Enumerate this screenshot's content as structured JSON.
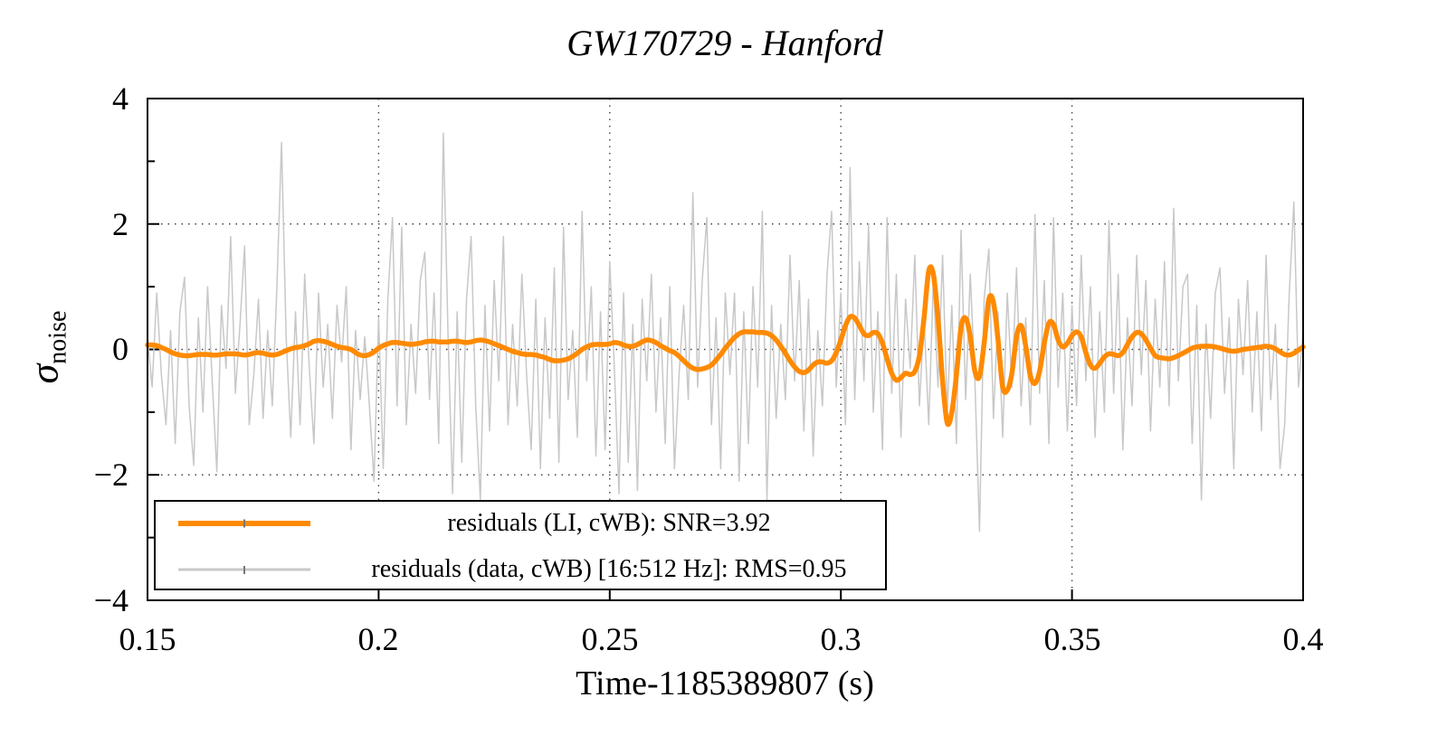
{
  "title": "GW170729 - Hanford",
  "axes": {
    "xlabel": "Time-1185389807 (s)",
    "ylabel_sigma": "σ",
    "ylabel_sub": "noise",
    "xticks": {
      "values": [
        0.15,
        0.2,
        0.25,
        0.3,
        0.35,
        0.4
      ],
      "labels": [
        "0.15",
        "0.2",
        "0.25",
        "0.3",
        "0.35",
        "0.4"
      ]
    },
    "yticks": {
      "values": [
        4,
        2,
        0,
        -2,
        -4
      ],
      "labels": [
        "4",
        "2",
        "0",
        "−2",
        "−4"
      ]
    },
    "yminor": [
      3,
      1,
      -1,
      -3
    ],
    "xgrid": [
      0.2,
      0.25,
      0.3,
      0.35
    ],
    "ygrid": [
      2,
      0,
      -2
    ]
  },
  "legend": {
    "entries": [
      {
        "label": "residuals (LI, cWB): SNR=3.92",
        "color": "#FF8A00"
      },
      {
        "label": "residuals (data, cWB) [16:512 Hz]: RMS=0.95",
        "color": "#C8C8C8"
      }
    ]
  },
  "colors": {
    "frame": "#000000",
    "grid": "#444444",
    "signal": "#FF8A00",
    "noise": "#C8C8C8",
    "background": "#ffffff"
  },
  "chart_data": {
    "type": "line",
    "title": "GW170729 - Hanford",
    "xlabel": "Time-1185389807 (s)",
    "ylabel": "sigma_noise",
    "xlim": [
      0.15,
      0.4
    ],
    "ylim": [
      -4,
      4
    ],
    "grid": true,
    "legend_position": "bottom-left",
    "x_start": 0.15,
    "x_step": 0.001,
    "series": [
      {
        "name": "residuals (LI, cWB): SNR=3.92",
        "color": "#FF8A00",
        "width": 5.5,
        "smooth": true,
        "values": [
          0.07,
          0.07,
          0.06,
          0.03,
          0.0,
          -0.04,
          -0.07,
          -0.09,
          -0.1,
          -0.1,
          -0.09,
          -0.08,
          -0.08,
          -0.08,
          -0.09,
          -0.09,
          -0.08,
          -0.07,
          -0.07,
          -0.07,
          -0.08,
          -0.09,
          -0.08,
          -0.06,
          -0.05,
          -0.06,
          -0.08,
          -0.09,
          -0.08,
          -0.05,
          -0.02,
          0.01,
          0.03,
          0.04,
          0.06,
          0.09,
          0.13,
          0.14,
          0.13,
          0.11,
          0.08,
          0.05,
          0.03,
          0.02,
          0.0,
          -0.05,
          -0.09,
          -0.1,
          -0.08,
          -0.04,
          0.02,
          0.06,
          0.09,
          0.11,
          0.11,
          0.1,
          0.09,
          0.08,
          0.09,
          0.1,
          0.12,
          0.13,
          0.13,
          0.12,
          0.12,
          0.12,
          0.13,
          0.13,
          0.12,
          0.11,
          0.12,
          0.14,
          0.15,
          0.14,
          0.12,
          0.09,
          0.06,
          0.03,
          0.0,
          -0.03,
          -0.05,
          -0.07,
          -0.08,
          -0.08,
          -0.09,
          -0.11,
          -0.13,
          -0.16,
          -0.18,
          -0.18,
          -0.17,
          -0.15,
          -0.11,
          -0.06,
          0.0,
          0.04,
          0.07,
          0.08,
          0.08,
          0.08,
          0.09,
          0.11,
          0.1,
          0.07,
          0.05,
          0.05,
          0.08,
          0.12,
          0.15,
          0.14,
          0.11,
          0.06,
          0.02,
          -0.02,
          -0.05,
          -0.11,
          -0.18,
          -0.25,
          -0.3,
          -0.32,
          -0.31,
          -0.29,
          -0.25,
          -0.17,
          -0.08,
          0.02,
          0.11,
          0.19,
          0.25,
          0.28,
          0.28,
          0.28,
          0.27,
          0.27,
          0.26,
          0.22,
          0.15,
          0.05,
          -0.06,
          -0.18,
          -0.28,
          -0.35,
          -0.37,
          -0.33,
          -0.25,
          -0.2,
          -0.2,
          -0.22,
          -0.18,
          -0.05,
          0.15,
          0.38,
          0.52,
          0.5,
          0.38,
          0.25,
          0.22,
          0.27,
          0.25,
          0.1,
          -0.15,
          -0.38,
          -0.49,
          -0.45,
          -0.38,
          -0.4,
          -0.35,
          -0.1,
          0.5,
          1.25,
          1.2,
          0.5,
          -0.5,
          -1.17,
          -1.0,
          -0.4,
          0.35,
          0.5,
          0.2,
          -0.35,
          -0.43,
          0.1,
          0.8,
          0.75,
          0.15,
          -0.6,
          -0.65,
          -0.38,
          0.2,
          0.38,
          0.05,
          -0.42,
          -0.54,
          -0.35,
          0.1,
          0.42,
          0.4,
          0.15,
          0.04,
          0.1,
          0.22,
          0.28,
          0.2,
          -0.05,
          -0.25,
          -0.3,
          -0.22,
          -0.12,
          -0.07,
          -0.08,
          -0.1,
          -0.05,
          0.08,
          0.2,
          0.27,
          0.25,
          0.15,
          0.02,
          -0.1,
          -0.13,
          -0.14,
          -0.15,
          -0.13,
          -0.1,
          -0.06,
          -0.02,
          0.02,
          0.04,
          0.05,
          0.05,
          0.05,
          0.04,
          0.02,
          0.0,
          -0.02,
          -0.03,
          -0.02,
          0.0,
          0.01,
          0.02,
          0.03,
          0.04,
          0.05,
          0.04,
          0.01,
          -0.04,
          -0.08,
          -0.09,
          -0.06,
          -0.01,
          0.04
        ]
      },
      {
        "name": "residuals (data, cWB) [16:512 Hz]: RMS=0.95",
        "color": "#C8C8C8",
        "width": 1.5,
        "smooth": false,
        "values": [
          0.2,
          -0.6,
          0.9,
          -0.4,
          -1.2,
          0.3,
          -1.5,
          0.6,
          1.15,
          -0.9,
          -1.85,
          0.5,
          -1.0,
          1.0,
          -0.5,
          -1.95,
          0.7,
          -0.3,
          1.8,
          -0.7,
          0.4,
          1.65,
          -1.2,
          -0.4,
          0.8,
          -1.1,
          0.3,
          -0.9,
          1.0,
          3.3,
          0.2,
          -1.4,
          0.6,
          -1.2,
          1.2,
          -0.3,
          -1.5,
          0.9,
          -0.6,
          0.4,
          -1.1,
          0.7,
          -0.2,
          1.0,
          -1.6,
          0.3,
          -0.8,
          0.2,
          -0.9,
          -2.1,
          0.5,
          -1.9,
          0.8,
          2.1,
          -0.9,
          1.95,
          -1.2,
          0.4,
          -0.7,
          1.1,
          1.55,
          -0.8,
          0.9,
          -1.5,
          3.45,
          0.3,
          -2.3,
          0.6,
          -1.8,
          0.8,
          1.8,
          -0.9,
          -2.4,
          0.7,
          -1.3,
          1.1,
          -0.5,
          1.8,
          -1.2,
          0.4,
          -0.9,
          1.2,
          -0.4,
          -1.6,
          0.8,
          -1.9,
          0.5,
          -1.1,
          1.3,
          -1.8,
          1.95,
          -0.8,
          0.3,
          -1.4,
          2.2,
          -0.5,
          1.0,
          -1.7,
          0.6,
          -1.6,
          1.4,
          -0.3,
          -2.3,
          0.9,
          -1.8,
          0.4,
          -2.25,
          0.8,
          -0.5,
          1.2,
          -1.0,
          0.5,
          -1.5,
          1.0,
          -1.9,
          -0.4,
          0.7,
          -0.8,
          2.5,
          -0.6,
          1.1,
          2.1,
          -1.2,
          0.5,
          -1.9,
          0.9,
          -0.4,
          0.9,
          -2.1,
          0.6,
          -1.5,
          1.0,
          -0.6,
          2.2,
          -2.4,
          0.7,
          -1.1,
          0.4,
          -0.8,
          1.5,
          -0.5,
          1.1,
          -1.3,
          0.8,
          -1.7,
          0.3,
          -0.9,
          1.2,
          2.2,
          -0.6,
          0.9,
          -1.2,
          2.9,
          -0.8,
          1.4,
          -0.5,
          2.0,
          -1.0,
          0.6,
          -1.6,
          2.1,
          -0.7,
          1.2,
          -1.4,
          0.8,
          -0.3,
          1.5,
          -0.9,
          0.5,
          -1.2,
          1.1,
          -0.6,
          1.5,
          -1.0,
          0.7,
          -1.5,
          1.9,
          -0.8,
          1.2,
          -0.5,
          -2.9,
          0.8,
          1.6,
          -1.1,
          0.6,
          -1.4,
          0.9,
          -0.6,
          1.3,
          -0.9,
          0.5,
          -1.2,
          2.15,
          -0.7,
          1.1,
          -1.5,
          2.1,
          -0.6,
          0.9,
          -1.3,
          0.7,
          -0.9,
          1.5,
          -0.5,
          1.0,
          -1.4,
          0.6,
          -1.0,
          2.05,
          -0.7,
          1.2,
          -1.6,
          0.5,
          -0.9,
          1.5,
          -0.4,
          1.1,
          -1.3,
          0.8,
          -0.6,
          1.4,
          -0.9,
          2.25,
          -0.5,
          1.0,
          1.2,
          -1.5,
          0.7,
          -2.4,
          0.4,
          -1.1,
          0.9,
          1.3,
          -0.7,
          0.5,
          -1.9,
          0.8,
          -0.4,
          1.1,
          -1.0,
          0.6,
          -1.3,
          1.5,
          -0.8,
          0.4,
          -1.9,
          -1.2,
          0.9,
          2.35,
          -0.6,
          0.3
        ]
      }
    ]
  }
}
